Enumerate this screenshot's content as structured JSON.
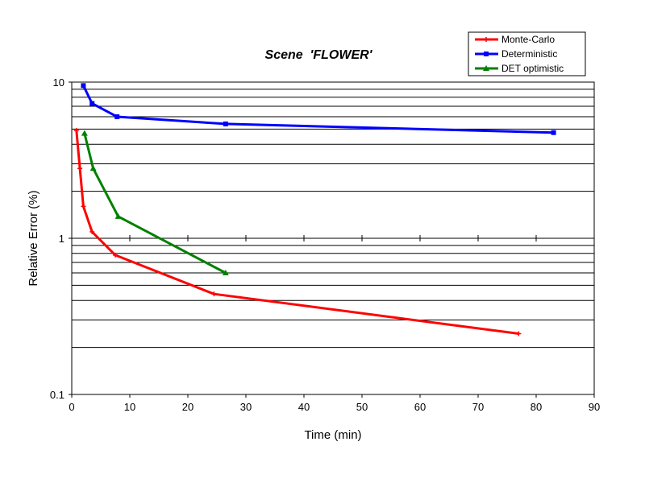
{
  "chart_data": {
    "type": "line",
    "title": "Scene  'FLOWER'",
    "xlabel": "Time (min)",
    "ylabel": "Relative Error (%)",
    "x_scale": "linear",
    "y_scale": "log",
    "xlim": [
      0,
      90
    ],
    "ylim": [
      0.1,
      10
    ],
    "x_ticks": [
      0,
      10,
      20,
      30,
      40,
      50,
      60,
      70,
      80,
      90
    ],
    "x_tick_labels": [
      "0",
      "10",
      "20",
      "30",
      "40",
      "50",
      "60",
      "70",
      "80",
      "90"
    ],
    "y_ticks": [
      0.1,
      1,
      10
    ],
    "y_tick_labels": [
      "0.1",
      "1",
      "10"
    ],
    "grid": "horizontal minor gridlines at log steps; vertical tick marks on the y=1 line",
    "legend_position": "top-right",
    "series": [
      {
        "name": "Monte-Carlo",
        "color": "#ff0000",
        "marker": "plus",
        "x": [
          0.8,
          1.4,
          2.0,
          3.5,
          7.5,
          24.5,
          77
        ],
        "y": [
          4.9,
          2.8,
          1.6,
          1.1,
          0.78,
          0.44,
          0.245
        ]
      },
      {
        "name": "Deterministic",
        "color": "#0000ff",
        "marker": "square",
        "x": [
          2.0,
          3.5,
          7.8,
          26.5,
          83
        ],
        "y": [
          9.5,
          7.3,
          6.0,
          5.4,
          4.75
        ]
      },
      {
        "name": "DET optimistic",
        "color": "#008000",
        "marker": "triangle",
        "x": [
          2.2,
          3.7,
          8.0,
          26.5
        ],
        "y": [
          4.7,
          2.8,
          1.38,
          0.6
        ]
      }
    ]
  }
}
